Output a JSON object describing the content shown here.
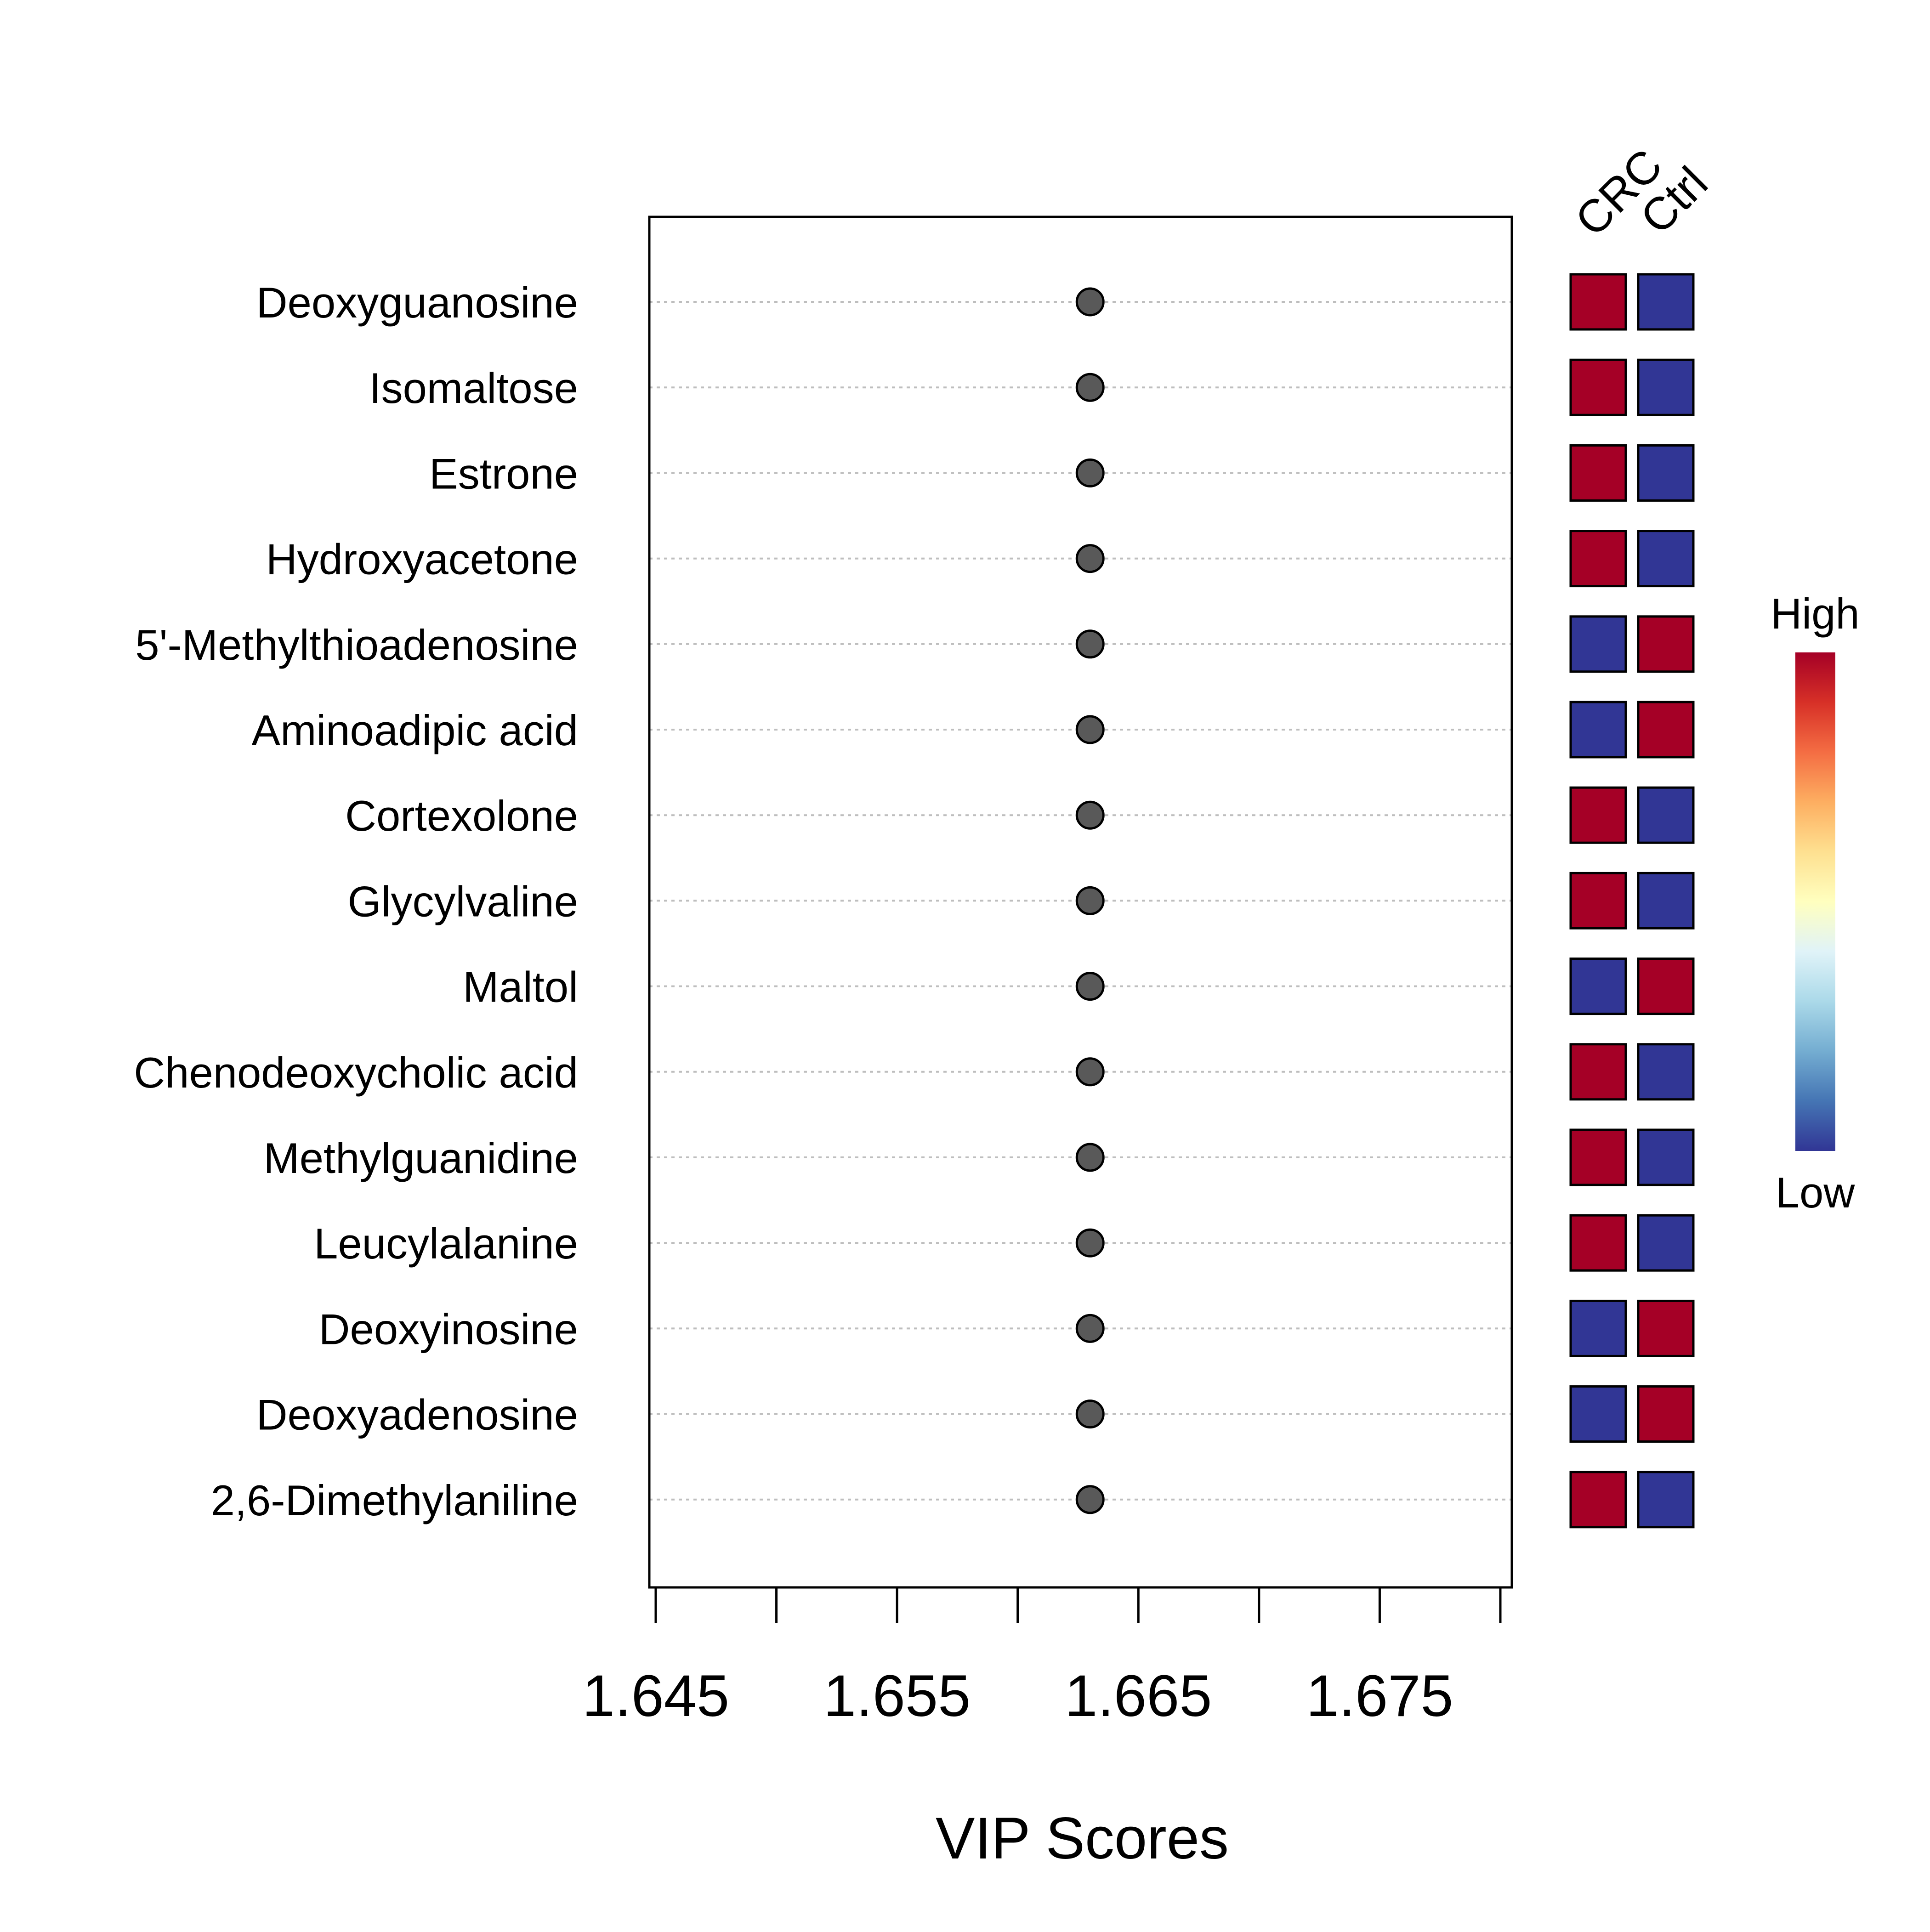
{
  "chart_data": {
    "type": "scatter",
    "title": "",
    "xlabel": "VIP Scores",
    "ylabel": "",
    "xlim": [
      1.645,
      1.681
    ],
    "x_ticks": [
      1.645,
      1.65,
      1.655,
      1.66,
      1.665,
      1.67,
      1.675,
      1.68
    ],
    "x_tick_labels": [
      "1.645",
      "1.655",
      "1.665",
      "1.675"
    ],
    "x_tick_label_values": [
      1.645,
      1.655,
      1.665,
      1.675
    ],
    "grid": "horizontal dotted lines at each metabolite",
    "categories": [
      "Deoxyguanosine",
      "Isomaltose",
      "Estrone",
      "Hydroxyacetone",
      "5'-Methylthioadenosine",
      "Aminoadipic acid",
      "Cortexolone",
      "Glycylvaline",
      "Maltol",
      "Chenodeoxycholic acid",
      "Methylguanidine",
      "Leucylalanine",
      "Deoxyinosine",
      "Deoxyadenosine",
      "2,6-Dimethylaniline"
    ],
    "values": [
      1.663,
      1.663,
      1.663,
      1.663,
      1.663,
      1.663,
      1.663,
      1.663,
      1.663,
      1.663,
      1.663,
      1.663,
      1.663,
      1.663,
      1.663
    ],
    "heatmap": {
      "columns": [
        "CRC",
        "Ctrl"
      ],
      "levels": [
        [
          "high",
          "low"
        ],
        [
          "high",
          "low"
        ],
        [
          "high",
          "low"
        ],
        [
          "high",
          "low"
        ],
        [
          "low",
          "high"
        ],
        [
          "low",
          "high"
        ],
        [
          "high",
          "low"
        ],
        [
          "high",
          "low"
        ],
        [
          "low",
          "high"
        ],
        [
          "high",
          "low"
        ],
        [
          "high",
          "low"
        ],
        [
          "high",
          "low"
        ],
        [
          "low",
          "high"
        ],
        [
          "low",
          "high"
        ],
        [
          "high",
          "low"
        ]
      ]
    },
    "legend": {
      "placement": "right",
      "high_label": "High",
      "low_label": "Low"
    }
  },
  "colors": {
    "high": "#a50026",
    "low": "#313695",
    "point_fill": "#595959",
    "gridline": "#bebebe",
    "axis": "#000000",
    "gradient": [
      "#313695",
      "#4575b4",
      "#74add1",
      "#abd9e9",
      "#e0f3f8",
      "#ffffbf",
      "#fee090",
      "#fdae61",
      "#f46d43",
      "#d73027",
      "#a50026"
    ]
  }
}
